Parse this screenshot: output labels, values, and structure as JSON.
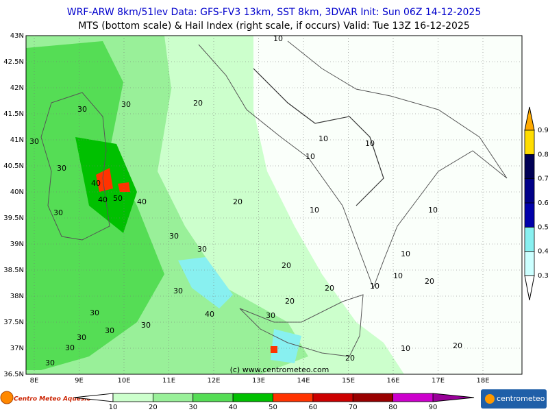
{
  "header": {
    "line1": "WRF-ARW 8km/51lev  Data: GFS-FV3 13km, SST 8km, 3DVAR   Init: Sun 06Z 14-12-2025",
    "line2": "MTS (bottom scale) & Hail Index (right scale, if occurs) Valid: Tue 13Z 16-12-2025"
  },
  "map": {
    "lat_labels": [
      "43N",
      "42.5N",
      "42N",
      "41.5N",
      "41N",
      "40.5N",
      "40N",
      "39.5N",
      "39N",
      "38.5N",
      "38N",
      "37.5N",
      "37N",
      "36.5N"
    ],
    "lon_labels": [
      "8E",
      "9E",
      "10E",
      "11E",
      "12E",
      "13E",
      "14E",
      "15E",
      "16E",
      "17E",
      "18E"
    ],
    "contour_labels": [
      "10",
      "30",
      "30",
      "20",
      "30",
      "10",
      "10",
      "10",
      "30",
      "40",
      "50",
      "40",
      "40",
      "20",
      "10",
      "30",
      "10",
      "30",
      "30",
      "20",
      "10",
      "10",
      "10",
      "20",
      "20",
      "30",
      "20",
      "30",
      "40",
      "30",
      "30",
      "30",
      "30",
      "30",
      "10",
      "20",
      "20",
      "30"
    ],
    "copyright": "(c) www.centrometeo.com"
  },
  "mts_scale": {
    "ticks": [
      10,
      20,
      30,
      40,
      50,
      60,
      70,
      80,
      90
    ],
    "colors": [
      "#ccffcc",
      "#99f099",
      "#55dd55",
      "#00c000",
      "#ff3300",
      "#cc0000",
      "#990000",
      "#cc00cc"
    ],
    "low_color": "#ffffff",
    "high_color": "#990099"
  },
  "hail_scale": {
    "ticks": [
      0.3,
      0.4,
      0.5,
      0.6,
      0.7,
      0.8,
      0.9
    ],
    "colors": [
      "#ccffff",
      "#88f0f0",
      "#0000aa",
      "#000088",
      "#000055",
      "#ffdd00"
    ],
    "low_color": "#ffffff",
    "high_color": "#ffaa00"
  },
  "logos": {
    "left": "Centro Meteo Aquesio",
    "right": "centrometeo"
  }
}
